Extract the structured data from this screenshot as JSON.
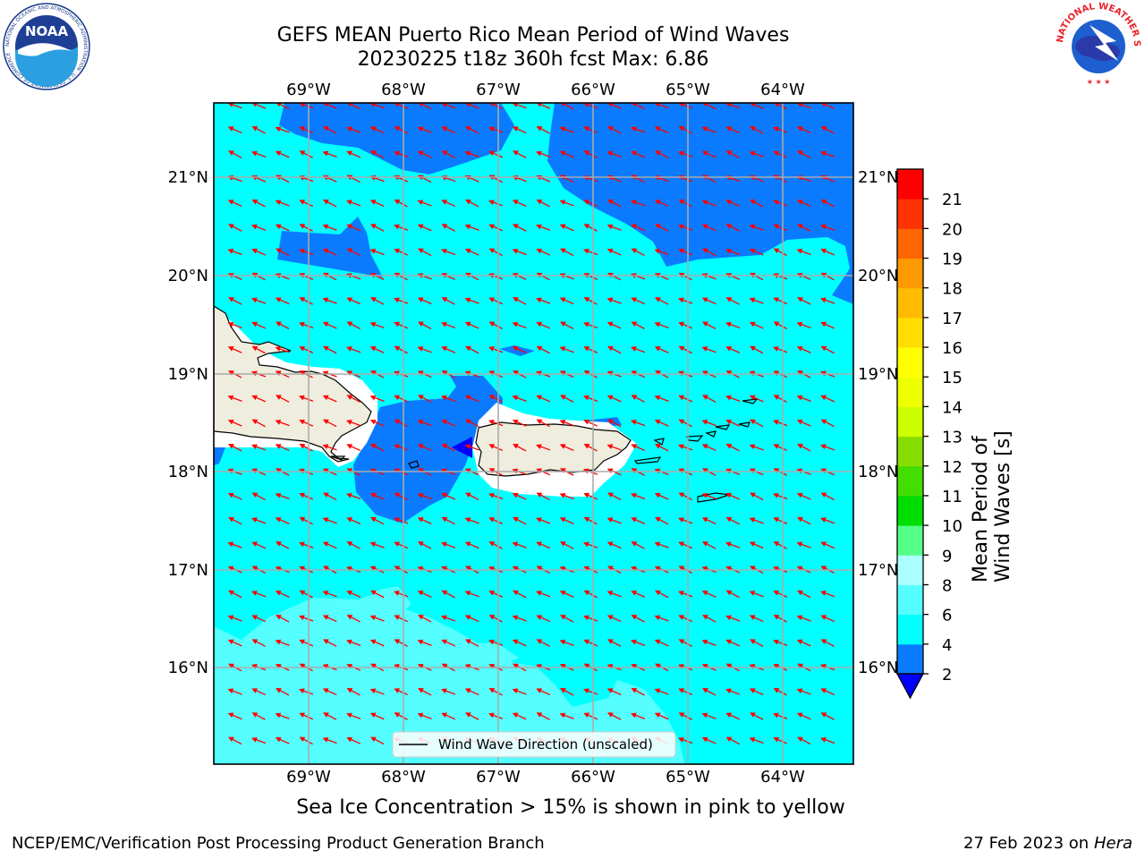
{
  "header": {
    "title_line1": "GEFS MEAN Puerto Rico Mean Period of Wind Waves",
    "title_line2": "20230225 t18z 360h fcst   Max: 6.86"
  },
  "logos": {
    "left_icon": "noaa-logo-icon",
    "left_text": "NOAA",
    "left_ring_text": "NATIONAL OCEANIC AND ATMOSPHERIC ADMINISTRATION · U.S. DEPARTMENT OF COMMERCE",
    "right_icon": "national-weather-service-logo-icon",
    "right_ring_text": "NATIONAL WEATHER SERVICE"
  },
  "map": {
    "lon_labels": [
      "69°W",
      "68°W",
      "67°W",
      "66°W",
      "65°W",
      "64°W"
    ],
    "lat_labels": [
      "21°N",
      "20°N",
      "19°N",
      "18°N",
      "17°N",
      "16°N"
    ],
    "legend_text": "Wind Wave Direction (unscaled)",
    "arrow_color": "#ff0000",
    "land_color": "#efedde",
    "ocean_colors": {
      "2-4": "#0a7bff",
      "4-6": "#00ffff",
      "6-8": "#55ffff"
    }
  },
  "colorbar": {
    "label": "Mean Period of Wind Waves [s]",
    "ticks": [
      "2",
      "4",
      "6",
      "8",
      "9",
      "10",
      "11",
      "12",
      "13",
      "14",
      "15",
      "16",
      "17",
      "18",
      "19",
      "20",
      "21"
    ],
    "colors": [
      "#0a7bff",
      "#00ffff",
      "#55ffff",
      "#aaffff",
      "#55ff88",
      "#00dd00",
      "#44dd00",
      "#88dd00",
      "#ccff00",
      "#eeff00",
      "#ffff00",
      "#ffdd00",
      "#ffbb00",
      "#ff9900",
      "#ff6600",
      "#ff3300",
      "#ff0000"
    ],
    "under_color": "#0000ff"
  },
  "footer": {
    "sea_ice_note": "Sea Ice Concentration > 15% is shown in pink to yellow",
    "org": "NCEP/EMC/Verification Post Processing Product Generation Branch",
    "date": "27 Feb 2023 on",
    "machine": "Hera"
  }
}
